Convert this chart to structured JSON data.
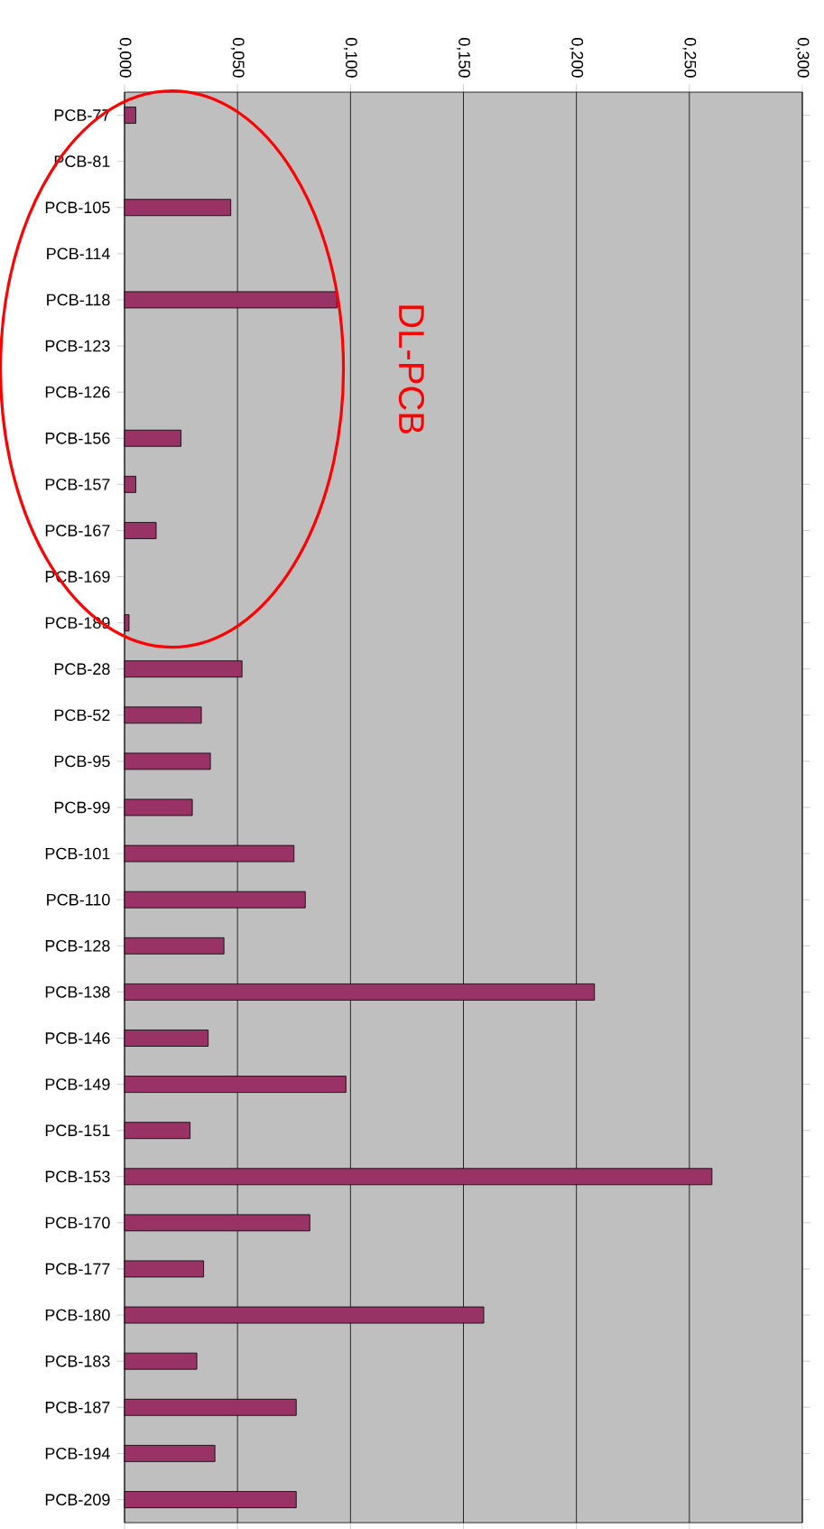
{
  "chart_data": {
    "type": "bar",
    "orientation": "horizontal",
    "categories": [
      "PCB-77",
      "PCB-81",
      "PCB-105",
      "PCB-114",
      "PCB-118",
      "PCB-123",
      "PCB-126",
      "PCB-156",
      "PCB-157",
      "PCB-167",
      "PCB-169",
      "PCB-189",
      "PCB-28",
      "PCB-52",
      "PCB-95",
      "PCB-99",
      "PCB-101",
      "PCB-110",
      "PCB-128",
      "PCB-138",
      "PCB-146",
      "PCB-149",
      "PCB-151",
      "PCB-153",
      "PCB-170",
      "PCB-177",
      "PCB-180",
      "PCB-183",
      "PCB-187",
      "PCB-194",
      "PCB-209"
    ],
    "values": [
      0.005,
      null,
      0.047,
      null,
      0.094,
      null,
      null,
      0.025,
      0.005,
      0.014,
      null,
      0.002,
      0.052,
      0.034,
      0.038,
      0.03,
      0.075,
      0.08,
      0.044,
      0.208,
      0.037,
      0.098,
      0.029,
      0.26,
      0.082,
      0.035,
      0.159,
      0.032,
      0.076,
      0.04,
      0.076
    ],
    "color": "#993366",
    "xlim": [
      0,
      0.3
    ],
    "xticks": [
      {
        "value": 0,
        "label": "0,000"
      },
      {
        "value": 0.05,
        "label": "0,050"
      },
      {
        "value": 0.1,
        "label": "0,100"
      },
      {
        "value": 0.15,
        "label": "0,150"
      },
      {
        "value": 0.2,
        "label": "0,200"
      },
      {
        "value": 0.25,
        "label": "0,250"
      },
      {
        "value": 0.3,
        "label": "0,300"
      }
    ],
    "grid": "x",
    "annotations": [
      "DL-PCB"
    ]
  }
}
